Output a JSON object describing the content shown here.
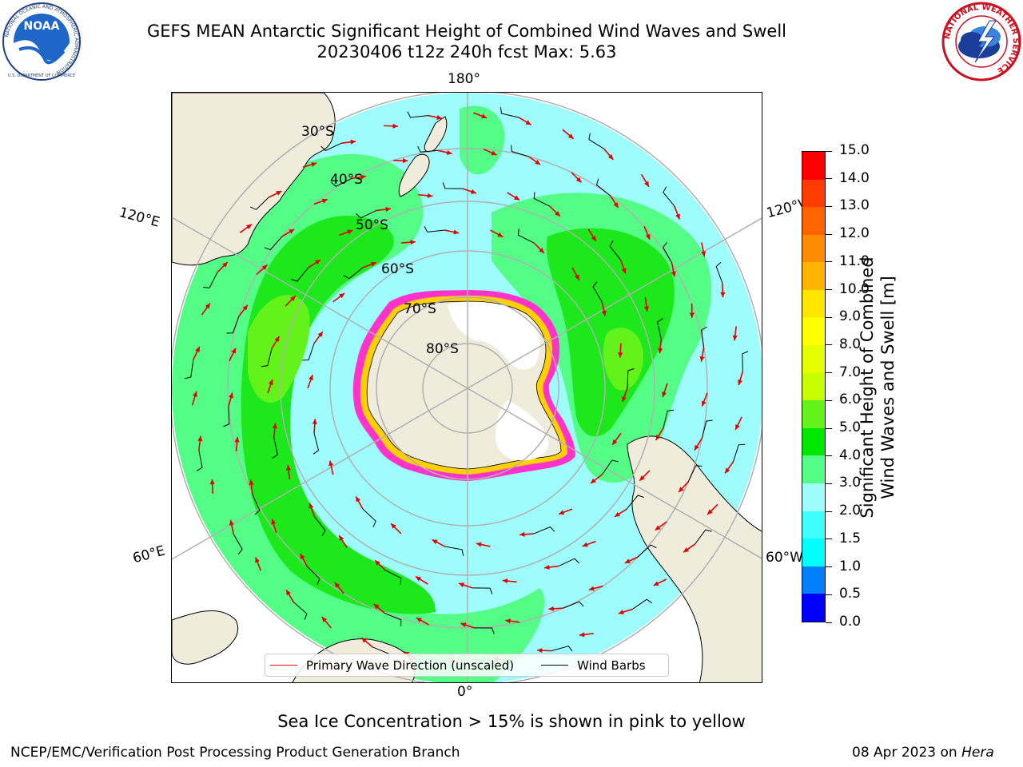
{
  "header": {
    "title_line1": "GEFS MEAN Antarctic Significant Height of Combined Wind Waves and Swell",
    "title_line2": "20230406 t12z 240h fcst   Max: 5.63"
  },
  "logos": {
    "noaa": {
      "text": "NOAA",
      "ring_text": "NATIONAL OCEANIC AND ATMOSPHERIC ADMINISTRATION",
      "bottom_text": "U.S. DEPARTMENT OF COMMERCE"
    },
    "nws": {
      "ring_text": "NATIONAL WEATHER SERVICE"
    }
  },
  "map": {
    "projection": "south-polar-stereographic",
    "lon_labels": {
      "top": "180°",
      "bottom": "0°",
      "left_upper": "120°E",
      "left_lower": "60°E",
      "right_upper": "120°W",
      "right_lower": "60°W"
    },
    "lat_labels": [
      "30°S",
      "40°S",
      "50°S",
      "60°S",
      "70°S",
      "80°S"
    ],
    "colors": {
      "land": "#efecdc",
      "ocean_low": "#9ffcfc",
      "ocean_mid": "#54fd85",
      "ocean_high": "#1ce81c",
      "ocean_peak": "#63f21a",
      "grid": "#b0b0b0",
      "sea_ice_edge": "#ff33cc",
      "coast": "#000000"
    }
  },
  "legend": {
    "items": [
      {
        "label": "Primary Wave Direction (unscaled)",
        "color": "#ff0000"
      },
      {
        "label": "Wind Barbs",
        "color": "#000000"
      }
    ]
  },
  "colorbar": {
    "title": "Significant Height of Combined Wind Waves and Swell [m]",
    "title_line1": "Significant Height of Combined",
    "title_line2": "Wind Waves and Swell [m]",
    "ticks": [
      "0.0",
      "0.5",
      "1.0",
      "1.5",
      "2.0",
      "3.0",
      "4.0",
      "5.0",
      "6.0",
      "7.0",
      "8.0",
      "9.0",
      "10.0",
      "11.0",
      "12.0",
      "13.0",
      "14.0",
      "15.0"
    ],
    "colors": [
      "#0000ff",
      "#0080ff",
      "#00ffff",
      "#40ffff",
      "#9ffcfc",
      "#54fd85",
      "#00e800",
      "#63f21a",
      "#c8ff00",
      "#e6ff00",
      "#ffff00",
      "#ffe600",
      "#ffb400",
      "#ff8c00",
      "#ff6400",
      "#ff3c00",
      "#ff0000"
    ]
  },
  "notes": {
    "sea_ice": "Sea Ice Concentration > 15% is shown in pink to yellow"
  },
  "footer": {
    "left": "NCEP/EMC/Verification Post Processing Product Generation Branch",
    "date": "08 Apr 2023 on ",
    "host": "Hera"
  }
}
